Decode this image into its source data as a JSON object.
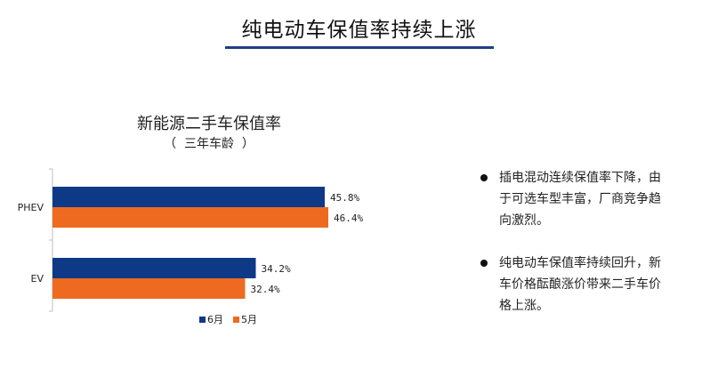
{
  "header": {
    "title": "纯电动车保值率持续上涨"
  },
  "colors": {
    "title_rule": "#1f3e86",
    "series_june": "#0d3987",
    "series_may": "#ee6a21"
  },
  "chart_data": {
    "type": "bar",
    "orientation": "horizontal",
    "title": "新能源二手车保值率",
    "subtitle": "（  三年车龄  ）",
    "categories": [
      "PHEV",
      "EV"
    ],
    "series": [
      {
        "name": "6月",
        "values": [
          45.8,
          34.2
        ],
        "labels": [
          "45.8%",
          "34.2%"
        ],
        "color": "#0d3987"
      },
      {
        "name": "5月",
        "values": [
          46.4,
          32.4
        ],
        "labels": [
          "46.4%",
          "32.4%"
        ],
        "color": "#ee6a21"
      }
    ],
    "xlim": [
      0,
      50
    ],
    "grid": false,
    "legend_position": "bottom"
  },
  "bullets": [
    {
      "text": "插电混动连续保值率下降，由于可选车型丰富，厂商竞争趋向激烈。"
    },
    {
      "text": "纯电动车保值率持续回升，新车价格酝酿涨价带来二手车价格上涨。"
    }
  ]
}
